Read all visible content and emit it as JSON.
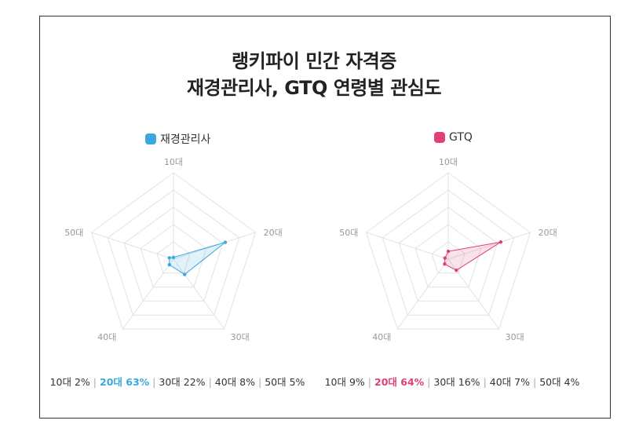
{
  "titles": {
    "line1": "랭키파이 민간 자격증",
    "line2": "재경관리사, GTQ 연령별 관심도"
  },
  "colors": {
    "series1": "#3aa9e0",
    "series2": "#e0407a"
  },
  "chart_data": [
    {
      "type": "radar",
      "legend": "재경관리사",
      "axes": [
        "10대",
        "20대",
        "30대",
        "40대",
        "50대"
      ],
      "values": [
        2,
        63,
        22,
        8,
        5
      ],
      "unit": "%",
      "rmax": 100,
      "rings": 5,
      "highlight_index": 1,
      "summary": [
        "10대 2%",
        "20대 63%",
        "30대 22%",
        "40대 8%",
        "50대 5%"
      ]
    },
    {
      "type": "radar",
      "legend": "GTQ",
      "axes": [
        "10대",
        "20대",
        "30대",
        "40대",
        "50대"
      ],
      "values": [
        9,
        64,
        16,
        7,
        4
      ],
      "unit": "%",
      "rmax": 100,
      "rings": 5,
      "highlight_index": 1,
      "summary": [
        "10대 9%",
        "20대 64%",
        "30대 16%",
        "40대 7%",
        "50대 4%"
      ]
    }
  ]
}
